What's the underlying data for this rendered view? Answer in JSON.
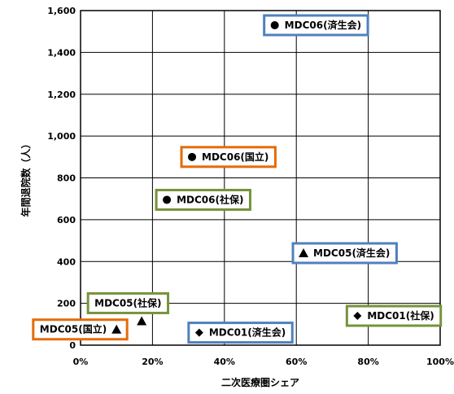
{
  "chart_data": {
    "type": "scatter",
    "title": "",
    "xlabel": "二次医療圏シェア",
    "ylabel": "年間退院数（人）",
    "xlim": [
      0,
      1
    ],
    "ylim": [
      0,
      1600
    ],
    "xticks": [
      0,
      0.2,
      0.4,
      0.6,
      0.8,
      1.0
    ],
    "xtick_labels": [
      "0%",
      "20%",
      "40%",
      "60%",
      "80%",
      "100%"
    ],
    "yticks": [
      0,
      200,
      400,
      600,
      800,
      1000,
      1200,
      1400,
      1600
    ],
    "ytick_labels": [
      "0",
      "200",
      "400",
      "600",
      "800",
      "1,000",
      "1,200",
      "1,400",
      "1,600"
    ],
    "grid": true,
    "points": [
      {
        "label": "MDC06(済生会)",
        "x": 0.54,
        "y": 1530,
        "marker": "circle",
        "box_color": "#4f81bd",
        "label_pos": "right"
      },
      {
        "label": "MDC06(国立)",
        "x": 0.31,
        "y": 900,
        "marker": "circle",
        "box_color": "#e36c0a",
        "label_pos": "right"
      },
      {
        "label": "MDC06(社保)",
        "x": 0.24,
        "y": 695,
        "marker": "circle",
        "box_color": "#77933c",
        "label_pos": "right"
      },
      {
        "label": "MDC05(済生会)",
        "x": 0.62,
        "y": 440,
        "marker": "triangle",
        "box_color": "#4f81bd",
        "label_pos": "right"
      },
      {
        "label": "MDC05(社保)",
        "x": 0.17,
        "y": 115,
        "marker": "triangle",
        "box_color": "#77933c",
        "label_pos": "above-left"
      },
      {
        "label": "MDC05(国立)",
        "x": 0.1,
        "y": 75,
        "marker": "triangle",
        "box_color": "#e36c0a",
        "label_pos": "left"
      },
      {
        "label": "MDC01(済生会)",
        "x": 0.33,
        "y": 60,
        "marker": "diamond",
        "box_color": "#4f81bd",
        "label_pos": "right"
      },
      {
        "label": "MDC01(社保)",
        "x": 0.77,
        "y": 140,
        "marker": "diamond",
        "box_color": "#77933c",
        "label_pos": "right"
      }
    ]
  }
}
